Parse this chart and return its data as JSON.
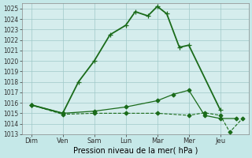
{
  "background_color": "#c5e8e8",
  "plot_bg_color": "#d5eded",
  "grid_color": "#9fc8c8",
  "line_color": "#1a6b1a",
  "x_labels": [
    "Dim",
    "Ven",
    "Sam",
    "Lun",
    "Mar",
    "Mer",
    "Jeu"
  ],
  "x_positions": [
    0,
    1,
    2,
    3,
    4,
    5,
    6
  ],
  "ylim": [
    1013,
    1025.5
  ],
  "yticks": [
    1013,
    1014,
    1015,
    1016,
    1017,
    1018,
    1019,
    1020,
    1021,
    1022,
    1023,
    1024,
    1025
  ],
  "xlabel": "Pression niveau de la mer( hPa )",
  "series": [
    {
      "name": "main_high",
      "x": [
        0,
        1,
        1.5,
        2,
        2.5,
        3,
        3.3,
        3.7,
        4.0,
        4.3,
        4.7,
        5,
        6
      ],
      "y": [
        1015.8,
        1015.0,
        1018.0,
        1020.0,
        1022.5,
        1023.4,
        1024.7,
        1024.3,
        1025.2,
        1024.5,
        1021.3,
        1021.5,
        1015.3
      ],
      "marker": "+",
      "linestyle": "-",
      "linewidth": 1.3,
      "markersize": 5
    },
    {
      "name": "mid_line",
      "x": [
        0,
        1,
        2,
        3,
        4,
        4.5,
        5,
        5.5,
        6,
        6.5
      ],
      "y": [
        1015.8,
        1015.0,
        1015.2,
        1015.6,
        1016.2,
        1016.8,
        1017.2,
        1014.8,
        1014.5,
        1014.5
      ],
      "marker": "D",
      "linestyle": "-",
      "linewidth": 0.9,
      "markersize": 2.5
    },
    {
      "name": "low_line",
      "x": [
        0,
        1,
        2,
        3,
        4,
        5,
        5.5,
        6,
        6.3,
        6.7
      ],
      "y": [
        1015.8,
        1014.9,
        1015.0,
        1015.0,
        1015.0,
        1014.8,
        1015.05,
        1014.8,
        1013.2,
        1014.5
      ],
      "marker": "D",
      "linestyle": "--",
      "linewidth": 0.8,
      "markersize": 2.5
    }
  ]
}
